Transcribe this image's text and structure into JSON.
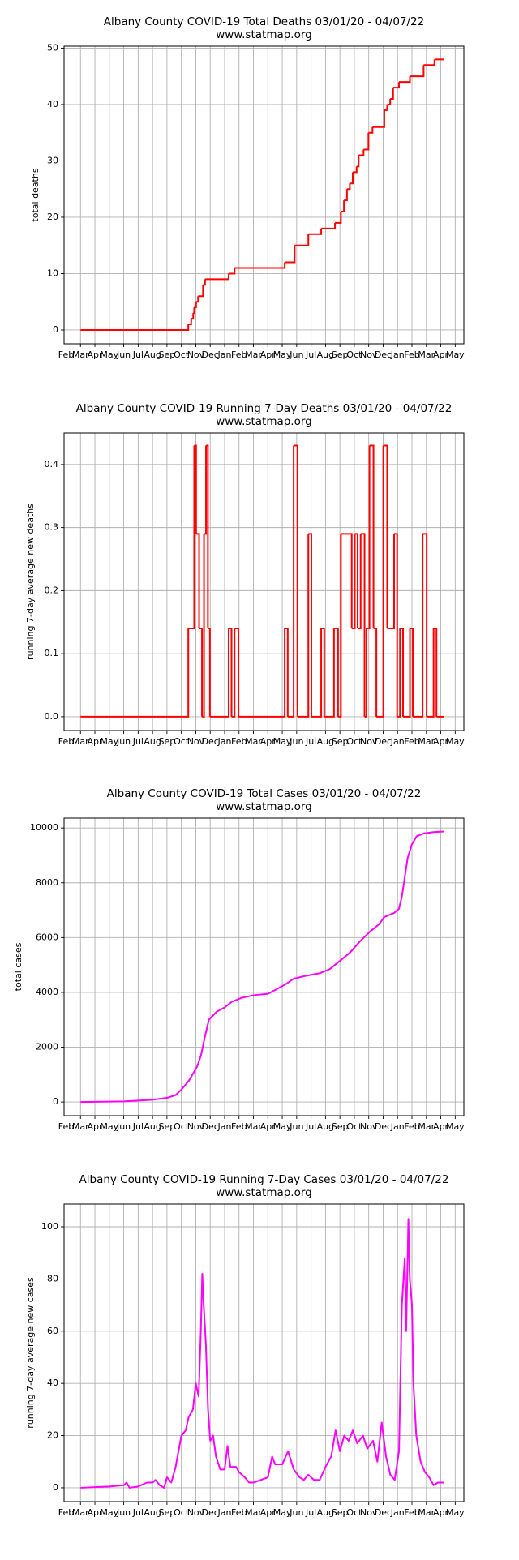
{
  "chart_data": [
    {
      "type": "line",
      "step": "post",
      "title": "Albany County COVID-19 Total Deaths 03/01/20 - 04/07/22",
      "subtitle": "www.statmap.org",
      "y_label": "total deaths",
      "color": "#ff0000",
      "grid": true,
      "xlim": [
        -0.14,
        27.6
      ],
      "ylim": [
        -2.45,
        50.35
      ],
      "xticks": [
        {
          "value": 0,
          "label": "Feb"
        },
        {
          "value": 1,
          "label": "Mar"
        },
        {
          "value": 2,
          "label": "Apr"
        },
        {
          "value": 3,
          "label": "May"
        },
        {
          "value": 4,
          "label": "Jun"
        },
        {
          "value": 5,
          "label": "Jul"
        },
        {
          "value": 6,
          "label": "Aug"
        },
        {
          "value": 7,
          "label": "Sep"
        },
        {
          "value": 8,
          "label": "Oct"
        },
        {
          "value": 9,
          "label": "Nov"
        },
        {
          "value": 10,
          "label": "Dec"
        },
        {
          "value": 11,
          "label": "Jan"
        },
        {
          "value": 12,
          "label": "Feb"
        },
        {
          "value": 13,
          "label": "Mar"
        },
        {
          "value": 14,
          "label": "Apr"
        },
        {
          "value": 15,
          "label": "May"
        },
        {
          "value": 16,
          "label": "Jun"
        },
        {
          "value": 17,
          "label": "Jul"
        },
        {
          "value": 18,
          "label": "Aug"
        },
        {
          "value": 19,
          "label": "Sep"
        },
        {
          "value": 20,
          "label": "Oct"
        },
        {
          "value": 21,
          "label": "Nov"
        },
        {
          "value": 22,
          "label": "Dec"
        },
        {
          "value": 23,
          "label": "Jan"
        },
        {
          "value": 24,
          "label": "Feb"
        },
        {
          "value": 25,
          "label": "Mar"
        },
        {
          "value": 26,
          "label": "Apr"
        },
        {
          "value": 27,
          "label": "May"
        }
      ],
      "yticks": [
        0,
        10,
        20,
        30,
        40,
        50
      ],
      "x": [
        1,
        8.48,
        8.68,
        8.82,
        8.89,
        9.02,
        9.16,
        9.5,
        9.64,
        11.28,
        11.69,
        15.17,
        15.86,
        16.81,
        17.7,
        18.66,
        19.07,
        19.28,
        19.49,
        19.69,
        19.89,
        20.16,
        20.3,
        20.64,
        20.98,
        21.26,
        22.08,
        22.28,
        22.49,
        22.69,
        23.1,
        23.86,
        24.81,
        25.56,
        26.23
      ],
      "values": [
        0,
        1,
        2,
        3,
        4,
        5,
        6,
        8,
        9,
        10,
        11,
        12,
        15,
        17,
        18,
        19,
        21,
        23,
        25,
        26,
        28,
        29,
        31,
        32,
        35,
        36,
        39,
        40,
        41,
        43,
        44,
        45,
        47,
        48,
        48
      ]
    },
    {
      "type": "line",
      "step": "post",
      "title": "Albany County COVID-19 Running 7-Day Deaths 03/01/20 - 04/07/22",
      "subtitle": "www.statmap.org",
      "y_label": "running 7-day average new deaths",
      "color": "#ff0000",
      "grid": true,
      "xlim": [
        -0.14,
        27.6
      ],
      "ylim": [
        -0.022,
        0.45
      ],
      "xticks": [
        {
          "value": 0,
          "label": "Feb"
        },
        {
          "value": 1,
          "label": "Mar"
        },
        {
          "value": 2,
          "label": "Apr"
        },
        {
          "value": 3,
          "label": "May"
        },
        {
          "value": 4,
          "label": "Jun"
        },
        {
          "value": 5,
          "label": "Jul"
        },
        {
          "value": 6,
          "label": "Aug"
        },
        {
          "value": 7,
          "label": "Sep"
        },
        {
          "value": 8,
          "label": "Oct"
        },
        {
          "value": 9,
          "label": "Nov"
        },
        {
          "value": 10,
          "label": "Dec"
        },
        {
          "value": 11,
          "label": "Jan"
        },
        {
          "value": 12,
          "label": "Feb"
        },
        {
          "value": 13,
          "label": "Mar"
        },
        {
          "value": 14,
          "label": "Apr"
        },
        {
          "value": 15,
          "label": "May"
        },
        {
          "value": 16,
          "label": "Jun"
        },
        {
          "value": 17,
          "label": "Jul"
        },
        {
          "value": 18,
          "label": "Aug"
        },
        {
          "value": 19,
          "label": "Sep"
        },
        {
          "value": 20,
          "label": "Oct"
        },
        {
          "value": 21,
          "label": "Nov"
        },
        {
          "value": 22,
          "label": "Dec"
        },
        {
          "value": 23,
          "label": "Jan"
        },
        {
          "value": 24,
          "label": "Feb"
        },
        {
          "value": 25,
          "label": "Mar"
        },
        {
          "value": 26,
          "label": "Apr"
        },
        {
          "value": 27,
          "label": "May"
        }
      ],
      "yticks": [
        {
          "value": 0,
          "label": "0.0"
        },
        0.1,
        0.2,
        0.3,
        0.4
      ],
      "x": [
        1,
        8.48,
        8.89,
        9.02,
        9.23,
        9.43,
        9.57,
        9.71,
        9.84,
        9.98,
        11.28,
        11.48,
        11.69,
        11.96,
        15.17,
        15.38,
        15.79,
        16.06,
        16.81,
        17.02,
        17.7,
        17.91,
        18.59,
        18.87,
        19.07,
        19.82,
        20.03,
        20.23,
        20.44,
        20.71,
        20.85,
        21.05,
        21.33,
        21.53,
        22.01,
        22.28,
        22.76,
        22.97,
        23.17,
        23.38,
        23.86,
        24.06,
        24.74,
        25.02,
        25.5,
        25.7,
        26.23
      ],
      "values": [
        0,
        0.14,
        0.43,
        0.29,
        0.14,
        0,
        0.29,
        0.43,
        0.14,
        0,
        0.14,
        0,
        0.14,
        0,
        0.14,
        0,
        0.43,
        0,
        0.29,
        0,
        0.14,
        0,
        0.14,
        0,
        0.29,
        0.14,
        0.29,
        0.14,
        0.29,
        0,
        0.14,
        0.43,
        0.14,
        0,
        0.43,
        0.14,
        0.29,
        0,
        0.14,
        0,
        0.14,
        0,
        0.29,
        0,
        0.14,
        0,
        0
      ]
    },
    {
      "type": "line",
      "title": "Albany County COVID-19 Total Cases 03/01/20 - 04/07/22",
      "subtitle": "www.statmap.org",
      "y_label": "total cases",
      "color": "#ff00ff",
      "grid": true,
      "xlim": [
        -0.14,
        27.6
      ],
      "ylim": [
        -500,
        10360
      ],
      "xticks": [
        {
          "value": 0,
          "label": "Feb"
        },
        {
          "value": 1,
          "label": "Mar"
        },
        {
          "value": 2,
          "label": "Apr"
        },
        {
          "value": 3,
          "label": "May"
        },
        {
          "value": 4,
          "label": "Jun"
        },
        {
          "value": 5,
          "label": "Jul"
        },
        {
          "value": 6,
          "label": "Aug"
        },
        {
          "value": 7,
          "label": "Sep"
        },
        {
          "value": 8,
          "label": "Oct"
        },
        {
          "value": 9,
          "label": "Nov"
        },
        {
          "value": 10,
          "label": "Dec"
        },
        {
          "value": 11,
          "label": "Jan"
        },
        {
          "value": 12,
          "label": "Feb"
        },
        {
          "value": 13,
          "label": "Mar"
        },
        {
          "value": 14,
          "label": "Apr"
        },
        {
          "value": 15,
          "label": "May"
        },
        {
          "value": 16,
          "label": "Jun"
        },
        {
          "value": 17,
          "label": "Jul"
        },
        {
          "value": 18,
          "label": "Aug"
        },
        {
          "value": 19,
          "label": "Sep"
        },
        {
          "value": 20,
          "label": "Oct"
        },
        {
          "value": 21,
          "label": "Nov"
        },
        {
          "value": 22,
          "label": "Dec"
        },
        {
          "value": 23,
          "label": "Jan"
        },
        {
          "value": 24,
          "label": "Feb"
        },
        {
          "value": 25,
          "label": "Mar"
        },
        {
          "value": 26,
          "label": "Apr"
        },
        {
          "value": 27,
          "label": "May"
        }
      ],
      "yticks": [
        0,
        2000,
        4000,
        6000,
        8000,
        10000
      ],
      "x": [
        1,
        4,
        6,
        7,
        7.6,
        8,
        8.55,
        9.1,
        9.36,
        9.64,
        9.91,
        10.46,
        11,
        11.48,
        12.17,
        13.06,
        14.01,
        14.56,
        15.24,
        15.79,
        16.6,
        17.6,
        18.3,
        19,
        19.7,
        20.37,
        21.05,
        21.74,
        22.08,
        22.76,
        23.1,
        23.3,
        23.5,
        23.7,
        23.99,
        24.33,
        24.81,
        25.5,
        26.23
      ],
      "values": [
        0,
        20,
        80,
        150,
        250,
        450,
        800,
        1300,
        1700,
        2400,
        3000,
        3300,
        3450,
        3650,
        3800,
        3900,
        3950,
        4100,
        4300,
        4500,
        4600,
        4700,
        4850,
        5150,
        5450,
        5850,
        6200,
        6500,
        6750,
        6900,
        7050,
        7500,
        8200,
        8900,
        9400,
        9700,
        9800,
        9850,
        9870
      ]
    },
    {
      "type": "line",
      "title": "Albany County COVID-19 Running 7-Day Cases 03/01/20 - 04/07/22",
      "subtitle": "www.statmap.org",
      "y_label": "running 7-day average new cases",
      "color": "#ff00ff",
      "grid": true,
      "xlim": [
        -0.14,
        27.6
      ],
      "ylim": [
        -5.3,
        108.7
      ],
      "xticks": [
        {
          "value": 0,
          "label": "Feb"
        },
        {
          "value": 1,
          "label": "Mar"
        },
        {
          "value": 2,
          "label": "Apr"
        },
        {
          "value": 3,
          "label": "May"
        },
        {
          "value": 4,
          "label": "Jun"
        },
        {
          "value": 5,
          "label": "Jul"
        },
        {
          "value": 6,
          "label": "Aug"
        },
        {
          "value": 7,
          "label": "Sep"
        },
        {
          "value": 8,
          "label": "Oct"
        },
        {
          "value": 9,
          "label": "Nov"
        },
        {
          "value": 10,
          "label": "Dec"
        },
        {
          "value": 11,
          "label": "Jan"
        },
        {
          "value": 12,
          "label": "Feb"
        },
        {
          "value": 13,
          "label": "Mar"
        },
        {
          "value": 14,
          "label": "Apr"
        },
        {
          "value": 15,
          "label": "May"
        },
        {
          "value": 16,
          "label": "Jun"
        },
        {
          "value": 17,
          "label": "Jul"
        },
        {
          "value": 18,
          "label": "Aug"
        },
        {
          "value": 19,
          "label": "Sep"
        },
        {
          "value": 20,
          "label": "Oct"
        },
        {
          "value": 21,
          "label": "Nov"
        },
        {
          "value": 22,
          "label": "Dec"
        },
        {
          "value": 23,
          "label": "Jan"
        },
        {
          "value": 24,
          "label": "Feb"
        },
        {
          "value": 25,
          "label": "Mar"
        },
        {
          "value": 26,
          "label": "Apr"
        },
        {
          "value": 27,
          "label": "May"
        }
      ],
      "yticks": [
        0,
        20,
        40,
        60,
        80,
        100
      ],
      "x": [
        1,
        3,
        4,
        4.2,
        4.4,
        5,
        5.6,
        6,
        6.2,
        6.5,
        6.8,
        7,
        7.3,
        7.6,
        8,
        8.3,
        8.5,
        8.8,
        9,
        9.2,
        9.35,
        9.45,
        9.55,
        9.7,
        9.85,
        10,
        10.2,
        10.4,
        10.7,
        11,
        11.2,
        11.4,
        11.8,
        12,
        12.4,
        12.7,
        13,
        13.5,
        14,
        14.3,
        14.5,
        15,
        15.4,
        15.8,
        16.2,
        16.5,
        16.8,
        17.2,
        17.6,
        18,
        18.4,
        18.7,
        19,
        19.3,
        19.6,
        19.9,
        20.2,
        20.6,
        20.9,
        21.3,
        21.6,
        21.9,
        22.2,
        22.5,
        22.8,
        23.1,
        23.3,
        23.5,
        23.6,
        23.75,
        23.85,
        24,
        24.1,
        24.3,
        24.6,
        24.9,
        25.2,
        25.5,
        25.8,
        26.23
      ],
      "values": [
        0,
        0.5,
        1,
        2,
        0,
        0.5,
        2,
        2,
        3,
        1,
        0,
        4,
        2,
        8,
        20,
        22,
        27,
        30,
        40,
        35,
        60,
        82,
        70,
        55,
        30,
        18,
        20,
        12,
        7,
        7,
        16,
        8,
        8,
        6,
        4,
        2,
        2,
        3,
        4,
        12,
        9,
        9,
        14,
        7,
        4,
        3,
        5,
        3,
        3,
        8,
        12,
        22,
        14,
        20,
        18,
        22,
        17,
        20,
        15,
        18,
        10,
        25,
        12,
        5,
        3,
        14,
        70,
        88,
        60,
        103,
        80,
        70,
        40,
        20,
        10,
        6,
        4,
        1,
        2,
        2
      ]
    }
  ]
}
